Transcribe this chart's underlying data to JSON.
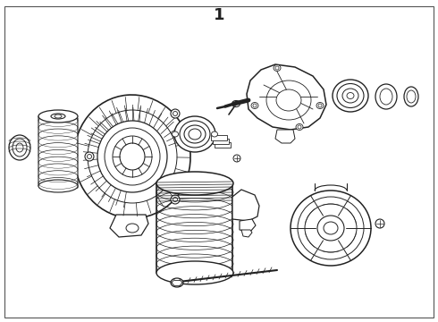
{
  "title": "1",
  "bg_color": "#ffffff",
  "border_color": "#333333",
  "line_color": "#222222",
  "line_width": 1.0,
  "fig_width": 4.9,
  "fig_height": 3.6,
  "dpi": 100
}
